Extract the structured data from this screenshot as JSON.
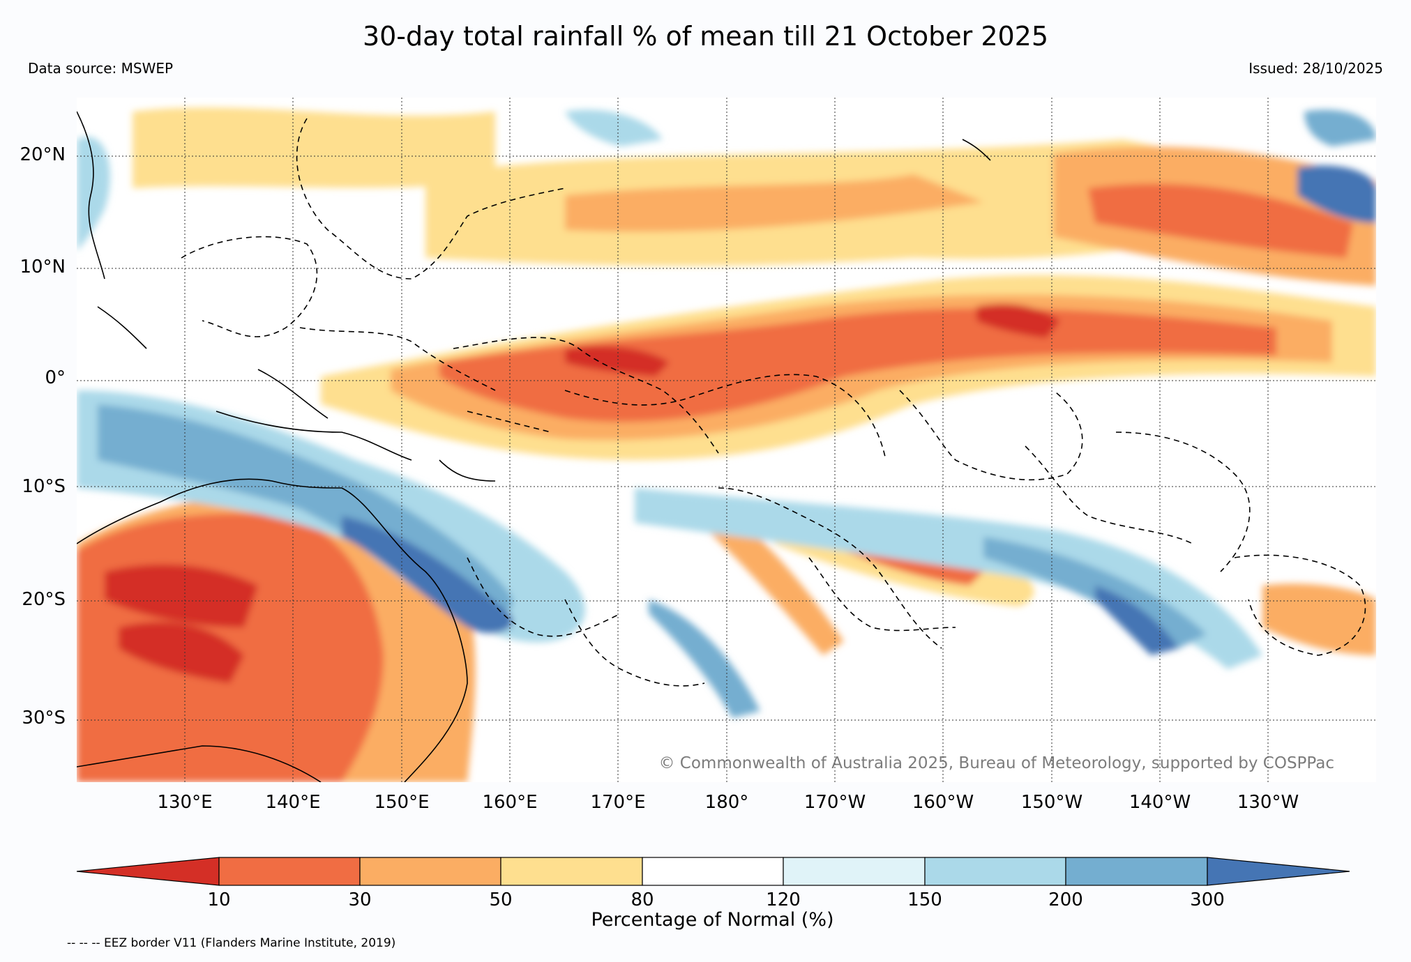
{
  "title": "30-day total rainfall % of mean till 21 October 2025",
  "data_source": "Data source: MSWEP",
  "issued": "Issued: 28/10/2025",
  "copyright": "© Commonwealth of Australia 2025, Bureau of Meteorology, supported by COSPPac",
  "eez_note": "-- -- -- EEZ border V11 (Flanders Marine Institute, 2019)",
  "map": {
    "lat_labels": [
      "20°N",
      "10°N",
      "0°",
      "10°S",
      "20°S",
      "30°S"
    ],
    "lon_labels": [
      "130°E",
      "140°E",
      "150°E",
      "160°E",
      "170°E",
      "180°",
      "170°W",
      "160°W",
      "150°W",
      "140°W",
      "130°W"
    ],
    "extent": {
      "lon_min": 120,
      "lon_max": 240,
      "lat_min": -36,
      "lat_max": 25
    }
  },
  "colorbar": {
    "label": "Percentage of Normal (%)",
    "ticks": [
      "10",
      "30",
      "50",
      "80",
      "120",
      "150",
      "200",
      "300"
    ],
    "colors": [
      "#d42f26",
      "#f06d43",
      "#fbad63",
      "#fedf8f",
      "#ffffff",
      "#e0f3f8",
      "#abd9e9",
      "#74aed0",
      "#4575b4"
    ]
  }
}
